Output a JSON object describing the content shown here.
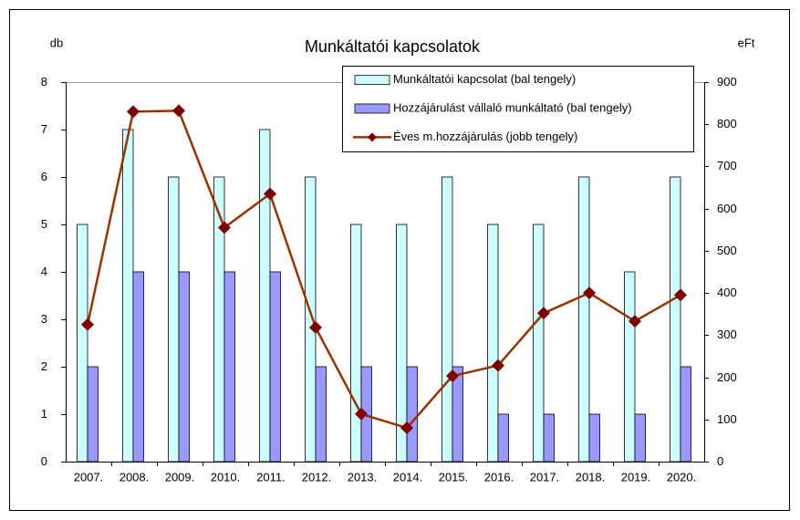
{
  "chart_data": {
    "type": "bar",
    "title": "Munkáltatói kapcsolatok",
    "ylabel": "db",
    "y2label": "eFt",
    "categories": [
      "2007.",
      "2008.",
      "2009.",
      "2010.",
      "2011.",
      "2012.",
      "2013.",
      "2014.",
      "2015.",
      "2016.",
      "2017.",
      "2018.",
      "2019.",
      "2020."
    ],
    "series": [
      {
        "name": "Munkáltatói kapcsolat (bal tengely)",
        "type": "bar",
        "color": "#ccffff",
        "values": [
          5,
          7,
          6,
          6,
          7,
          6,
          5,
          5,
          6,
          5,
          5,
          6,
          4,
          6
        ]
      },
      {
        "name": "Hozzájárulást vállaló munkáltató (bal tengely)",
        "type": "bar",
        "color": "#9999ff",
        "values": [
          2,
          4,
          4,
          4,
          4,
          2,
          2,
          2,
          2,
          1,
          1,
          1,
          1,
          2
        ]
      },
      {
        "name": "Éves m.hozzájárulás (jobb tengely)",
        "type": "line",
        "axis": "y2",
        "color": "#993300",
        "marker_color": "#800000",
        "values": [
          325,
          830,
          832,
          555,
          635,
          318,
          113,
          80,
          203,
          228,
          352,
          400,
          333,
          395
        ]
      }
    ],
    "ylim": [
      0,
      8
    ],
    "yticks": [
      0,
      1,
      2,
      3,
      4,
      5,
      6,
      7,
      8
    ],
    "y2lim": [
      0,
      900
    ],
    "y2ticks": [
      0,
      100,
      200,
      300,
      400,
      500,
      600,
      700,
      800,
      900
    ],
    "grid": false,
    "legend": "upper right"
  }
}
